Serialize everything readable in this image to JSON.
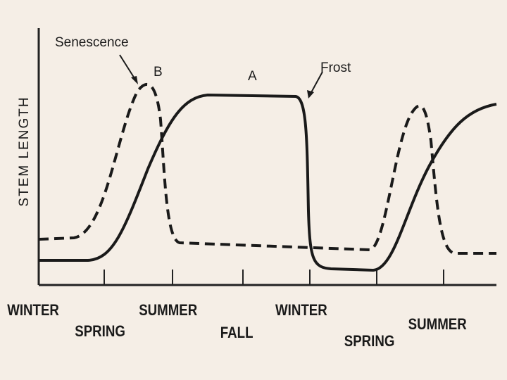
{
  "axis_label": "STEM LENGTH",
  "annotations": [
    {
      "label": "Senescence"
    },
    {
      "label": "B"
    },
    {
      "label": "A"
    },
    {
      "label": "Frost"
    }
  ],
  "seasons": [
    "WINTER",
    "SPRING",
    "SUMMER",
    "FALL",
    "WINTER",
    "SPRING",
    "SUMMER"
  ]
}
